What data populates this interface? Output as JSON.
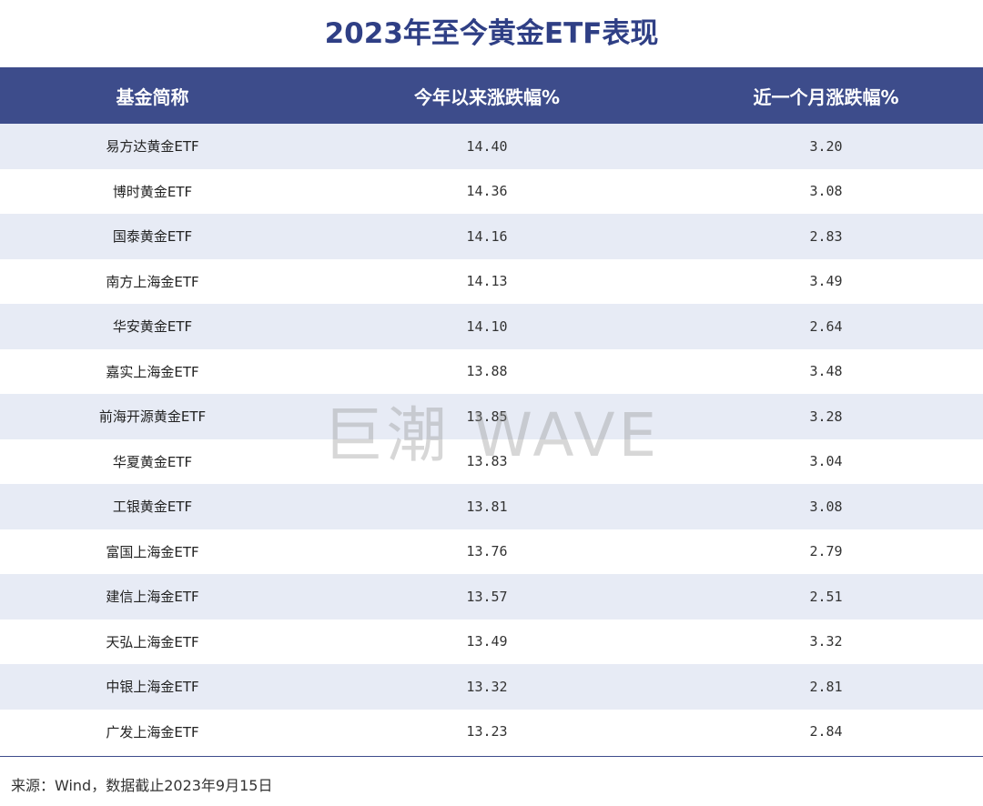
{
  "title": "2023年至今黄金ETF表现",
  "table": {
    "headers": [
      "基金简称",
      "今年以来涨跌幅%",
      "近一个月涨跌幅%"
    ],
    "rows": [
      {
        "name": "易方达黄金ETF",
        "ytd": "14.40",
        "month": "3.20"
      },
      {
        "name": "博时黄金ETF",
        "ytd": "14.36",
        "month": "3.08"
      },
      {
        "name": "国泰黄金ETF",
        "ytd": "14.16",
        "month": "2.83"
      },
      {
        "name": "南方上海金ETF",
        "ytd": "14.13",
        "month": "3.49"
      },
      {
        "name": "华安黄金ETF",
        "ytd": "14.10",
        "month": "2.64"
      },
      {
        "name": "嘉实上海金ETF",
        "ytd": "13.88",
        "month": "3.48"
      },
      {
        "name": "前海开源黄金ETF",
        "ytd": "13.85",
        "month": "3.28"
      },
      {
        "name": "华夏黄金ETF",
        "ytd": "13.83",
        "month": "3.04"
      },
      {
        "name": "工银黄金ETF",
        "ytd": "13.81",
        "month": "3.08"
      },
      {
        "name": "富国上海金ETF",
        "ytd": "13.76",
        "month": "2.79"
      },
      {
        "name": "建信上海金ETF",
        "ytd": "13.57",
        "month": "2.51"
      },
      {
        "name": "天弘上海金ETF",
        "ytd": "13.49",
        "month": "3.32"
      },
      {
        "name": "中银上海金ETF",
        "ytd": "13.32",
        "month": "2.81"
      },
      {
        "name": "广发上海金ETF",
        "ytd": "13.23",
        "month": "2.84"
      }
    ]
  },
  "watermark": "巨潮 WAVE",
  "source": "来源：Wind，数据截止2023年9月15日",
  "colors": {
    "header_bg": "#3d4c8b",
    "title": "#2f3f85",
    "row_shade": "#e7ebf5"
  }
}
